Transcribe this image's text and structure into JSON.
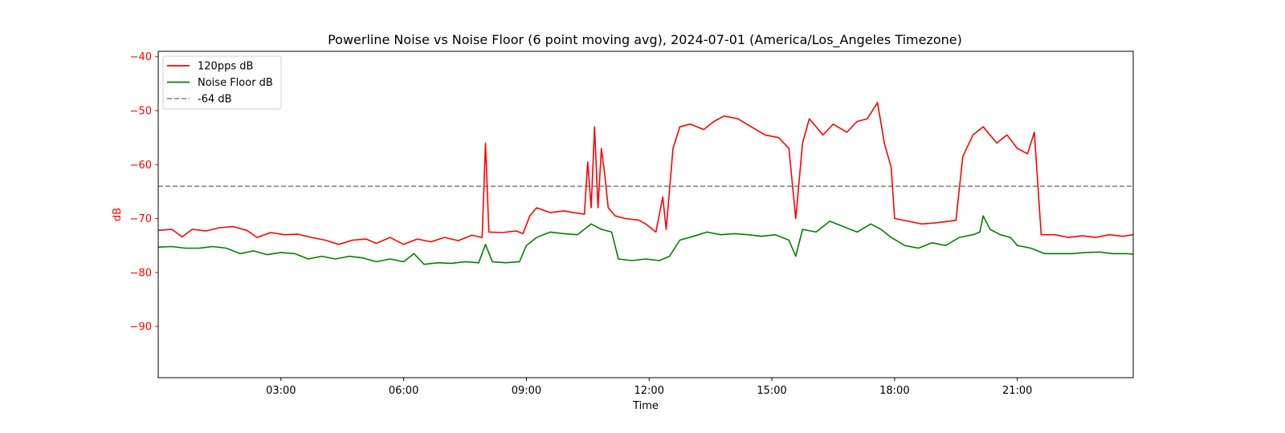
{
  "chart_data": {
    "type": "line",
    "title": "Powerline Noise vs Noise Floor (6 point moving avg), 2024-07-01 (America/Los_Angeles Timezone)",
    "xlabel": "Time",
    "ylabel": "dB",
    "xlim": [
      "00:00",
      "23:50"
    ],
    "ylim": [
      -99.5,
      -39
    ],
    "x_ticks": [
      "03:00",
      "06:00",
      "09:00",
      "12:00",
      "15:00",
      "18:00",
      "21:00"
    ],
    "y_ticks": [
      -40,
      -50,
      -60,
      -70,
      -80,
      -90
    ],
    "grid": false,
    "legend_position": "top-left",
    "y_axis_color": "#ff0000",
    "series": [
      {
        "name": "120pps dB",
        "color": "#ff0000",
        "style": "solid",
        "points": [
          [
            "00:00",
            -72.2
          ],
          [
            "00:20",
            -72.0
          ],
          [
            "00:35",
            -73.4
          ],
          [
            "00:50",
            -72.0
          ],
          [
            "01:10",
            -72.3
          ],
          [
            "01:30",
            -71.7
          ],
          [
            "01:50",
            -71.5
          ],
          [
            "02:10",
            -72.2
          ],
          [
            "02:25",
            -73.5
          ],
          [
            "02:45",
            -72.6
          ],
          [
            "03:05",
            -73.0
          ],
          [
            "03:25",
            -72.9
          ],
          [
            "03:45",
            -73.5
          ],
          [
            "04:05",
            -74.0
          ],
          [
            "04:25",
            -74.8
          ],
          [
            "04:45",
            -74.0
          ],
          [
            "05:05",
            -73.8
          ],
          [
            "05:20",
            -74.6
          ],
          [
            "05:40",
            -73.5
          ],
          [
            "06:00",
            -74.8
          ],
          [
            "06:20",
            -73.8
          ],
          [
            "06:40",
            -74.3
          ],
          [
            "07:00",
            -73.5
          ],
          [
            "07:20",
            -74.1
          ],
          [
            "07:40",
            -73.1
          ],
          [
            "07:55",
            -73.5
          ],
          [
            "08:00",
            -56.0
          ],
          [
            "08:05",
            -72.5
          ],
          [
            "08:25",
            -72.6
          ],
          [
            "08:45",
            -72.3
          ],
          [
            "08:55",
            -72.8
          ],
          [
            "09:05",
            -69.5
          ],
          [
            "09:15",
            -68.0
          ],
          [
            "09:35",
            -68.9
          ],
          [
            "09:55",
            -68.6
          ],
          [
            "10:15",
            -69.0
          ],
          [
            "10:25",
            -69.2
          ],
          [
            "10:30",
            -59.5
          ],
          [
            "10:35",
            -68.0
          ],
          [
            "10:40",
            -53.0
          ],
          [
            "10:45",
            -68.0
          ],
          [
            "10:50",
            -57.0
          ],
          [
            "10:55",
            -62.0
          ],
          [
            "11:00",
            -68.0
          ],
          [
            "11:10",
            -69.5
          ],
          [
            "11:25",
            -70.0
          ],
          [
            "11:45",
            -70.3
          ],
          [
            "11:55",
            -71.0
          ],
          [
            "12:10",
            -72.5
          ],
          [
            "12:20",
            -66.0
          ],
          [
            "12:25",
            -72.0
          ],
          [
            "12:35",
            -57.0
          ],
          [
            "12:45",
            -53.0
          ],
          [
            "13:00",
            -52.5
          ],
          [
            "13:20",
            -53.5
          ],
          [
            "13:35",
            -52.0
          ],
          [
            "13:50",
            -51.0
          ],
          [
            "14:10",
            -51.5
          ],
          [
            "14:30",
            -53.0
          ],
          [
            "14:50",
            -54.5
          ],
          [
            "15:10",
            -55.0
          ],
          [
            "15:25",
            -57.0
          ],
          [
            "15:35",
            -70.0
          ],
          [
            "15:45",
            -56.0
          ],
          [
            "15:55",
            -51.5
          ],
          [
            "16:15",
            -54.5
          ],
          [
            "16:30",
            -52.5
          ],
          [
            "16:50",
            -54.0
          ],
          [
            "17:05",
            -52.0
          ],
          [
            "17:20",
            -51.5
          ],
          [
            "17:35",
            -48.5
          ],
          [
            "17:45",
            -56.0
          ],
          [
            "17:55",
            -60.5
          ],
          [
            "18:00",
            -70.0
          ],
          [
            "18:20",
            -70.5
          ],
          [
            "18:40",
            -71.0
          ],
          [
            "19:00",
            -70.8
          ],
          [
            "19:20",
            -70.5
          ],
          [
            "19:30",
            -70.3
          ],
          [
            "19:40",
            -58.5
          ],
          [
            "19:55",
            -54.5
          ],
          [
            "20:10",
            -53.0
          ],
          [
            "20:30",
            -56.0
          ],
          [
            "20:45",
            -54.5
          ],
          [
            "21:00",
            -57.0
          ],
          [
            "21:15",
            -58.0
          ],
          [
            "21:25",
            -54.0
          ],
          [
            "21:35",
            -73.0
          ],
          [
            "21:55",
            -73.0
          ],
          [
            "22:15",
            -73.5
          ],
          [
            "22:35",
            -73.2
          ],
          [
            "22:55",
            -73.5
          ],
          [
            "23:15",
            -73.0
          ],
          [
            "23:35",
            -73.3
          ],
          [
            "23:50",
            -73.0
          ]
        ]
      },
      {
        "name": "Noise Floor dB",
        "color": "#008000",
        "style": "solid",
        "points": [
          [
            "00:00",
            -75.3
          ],
          [
            "00:20",
            -75.2
          ],
          [
            "00:40",
            -75.5
          ],
          [
            "01:00",
            -75.5
          ],
          [
            "01:20",
            -75.2
          ],
          [
            "01:40",
            -75.5
          ],
          [
            "02:00",
            -76.5
          ],
          [
            "02:20",
            -76.0
          ],
          [
            "02:40",
            -76.7
          ],
          [
            "03:00",
            -76.3
          ],
          [
            "03:20",
            -76.5
          ],
          [
            "03:40",
            -77.5
          ],
          [
            "04:00",
            -77.0
          ],
          [
            "04:20",
            -77.5
          ],
          [
            "04:40",
            -77.0
          ],
          [
            "05:00",
            -77.3
          ],
          [
            "05:20",
            -78.0
          ],
          [
            "05:40",
            -77.5
          ],
          [
            "06:00",
            -78.0
          ],
          [
            "06:15",
            -76.5
          ],
          [
            "06:30",
            -78.5
          ],
          [
            "06:50",
            -78.2
          ],
          [
            "07:10",
            -78.3
          ],
          [
            "07:30",
            -78.0
          ],
          [
            "07:50",
            -78.2
          ],
          [
            "08:00",
            -74.8
          ],
          [
            "08:10",
            -78.0
          ],
          [
            "08:30",
            -78.2
          ],
          [
            "08:50",
            -78.0
          ],
          [
            "09:00",
            -75.0
          ],
          [
            "09:15",
            -73.5
          ],
          [
            "09:35",
            -72.5
          ],
          [
            "09:55",
            -72.8
          ],
          [
            "10:15",
            -73.0
          ],
          [
            "10:35",
            -71.0
          ],
          [
            "10:50",
            -72.0
          ],
          [
            "11:05",
            -72.5
          ],
          [
            "11:15",
            -77.5
          ],
          [
            "11:35",
            -77.8
          ],
          [
            "11:55",
            -77.5
          ],
          [
            "12:15",
            -77.8
          ],
          [
            "12:30",
            -77.0
          ],
          [
            "12:45",
            -74.0
          ],
          [
            "13:05",
            -73.3
          ],
          [
            "13:25",
            -72.5
          ],
          [
            "13:45",
            -73.0
          ],
          [
            "14:05",
            -72.8
          ],
          [
            "14:25",
            -73.0
          ],
          [
            "14:45",
            -73.3
          ],
          [
            "15:05",
            -73.0
          ],
          [
            "15:25",
            -74.0
          ],
          [
            "15:35",
            -77.0
          ],
          [
            "15:45",
            -72.0
          ],
          [
            "16:05",
            -72.5
          ],
          [
            "16:25",
            -70.5
          ],
          [
            "16:45",
            -71.5
          ],
          [
            "17:05",
            -72.5
          ],
          [
            "17:25",
            -71.0
          ],
          [
            "17:40",
            -72.0
          ],
          [
            "17:55",
            -73.5
          ],
          [
            "18:15",
            -75.0
          ],
          [
            "18:35",
            -75.5
          ],
          [
            "18:55",
            -74.5
          ],
          [
            "19:15",
            -75.0
          ],
          [
            "19:35",
            -73.5
          ],
          [
            "19:55",
            -73.0
          ],
          [
            "20:05",
            -72.5
          ],
          [
            "20:10",
            -69.5
          ],
          [
            "20:20",
            -72.0
          ],
          [
            "20:35",
            -73.0
          ],
          [
            "20:50",
            -73.5
          ],
          [
            "21:00",
            -75.0
          ],
          [
            "21:20",
            -75.5
          ],
          [
            "21:40",
            -76.5
          ],
          [
            "22:00",
            -76.5
          ],
          [
            "22:20",
            -76.5
          ],
          [
            "22:40",
            -76.3
          ],
          [
            "23:00",
            -76.2
          ],
          [
            "23:20",
            -76.5
          ],
          [
            "23:40",
            -76.5
          ],
          [
            "23:50",
            -76.6
          ]
        ]
      },
      {
        "name": "-64 dB",
        "color": "#808080",
        "style": "dashed",
        "points": [
          [
            "00:00",
            -64
          ],
          [
            "23:50",
            -64
          ]
        ]
      }
    ]
  }
}
